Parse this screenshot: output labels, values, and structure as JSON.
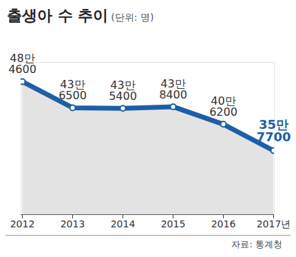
{
  "chart_data": {
    "type": "line",
    "title": "출생아 수 추이",
    "subtitle": "(단위: 명)",
    "source": "자료: 통계청",
    "categories": [
      "2012",
      "2013",
      "2014",
      "2015",
      "2016",
      "2017년"
    ],
    "values": [
      484600,
      436500,
      435400,
      438400,
      406200,
      357700
    ],
    "value_labels": [
      "48만\n4600",
      "43만\n6500",
      "43만\n5400",
      "43만\n8400",
      "40만\n6200",
      "35만\n7700"
    ],
    "color": "#1d5fa6",
    "ylim": [
      240000,
      520000
    ],
    "data_labels": true,
    "tick_labels": "x",
    "grid": false
  }
}
